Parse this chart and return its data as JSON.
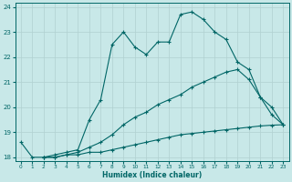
{
  "xlabel": "Humidex (Indice chaleur)",
  "background_color": "#c8e8e8",
  "grid_color": "#b0d0d0",
  "line_color": "#006666",
  "xlim": [
    -0.5,
    23.5
  ],
  "ylim": [
    17.85,
    24.15
  ],
  "yticks": [
    18,
    19,
    20,
    21,
    22,
    23,
    24
  ],
  "xticks": [
    0,
    1,
    2,
    3,
    4,
    5,
    6,
    7,
    8,
    9,
    10,
    11,
    12,
    13,
    14,
    15,
    16,
    17,
    18,
    19,
    20,
    21,
    22,
    23
  ],
  "series": [
    {
      "x": [
        0,
        1,
        2,
        3,
        4,
        5,
        6,
        7,
        8,
        9,
        10,
        11,
        12,
        13,
        14,
        15,
        16,
        17,
        18,
        19,
        20,
        21,
        22,
        23
      ],
      "y": [
        18.6,
        18.0,
        18.0,
        18.1,
        18.2,
        18.3,
        19.5,
        20.3,
        22.5,
        23.0,
        22.4,
        22.1,
        22.6,
        22.6,
        23.7,
        23.8,
        23.5,
        23.0,
        22.7,
        21.8,
        21.5,
        20.4,
        20.0,
        19.3
      ]
    },
    {
      "x": [
        2,
        3,
        4,
        5,
        6,
        7,
        8,
        9,
        10,
        11,
        12,
        13,
        14,
        15,
        16,
        17,
        18,
        19,
        20,
        21,
        22,
        23
      ],
      "y": [
        18.0,
        18.0,
        18.1,
        18.2,
        18.4,
        18.6,
        18.9,
        19.3,
        19.6,
        19.8,
        20.1,
        20.3,
        20.5,
        20.8,
        21.0,
        21.2,
        21.4,
        21.5,
        21.1,
        20.4,
        19.7,
        19.3
      ]
    },
    {
      "x": [
        2,
        3,
        4,
        5,
        6,
        7,
        8,
        9,
        10,
        11,
        12,
        13,
        14,
        15,
        16,
        17,
        18,
        19,
        20,
        21,
        22,
        23
      ],
      "y": [
        18.0,
        18.0,
        18.1,
        18.1,
        18.2,
        18.2,
        18.3,
        18.4,
        18.5,
        18.6,
        18.7,
        18.8,
        18.9,
        18.95,
        19.0,
        19.05,
        19.1,
        19.15,
        19.2,
        19.25,
        19.28,
        19.3
      ]
    }
  ]
}
